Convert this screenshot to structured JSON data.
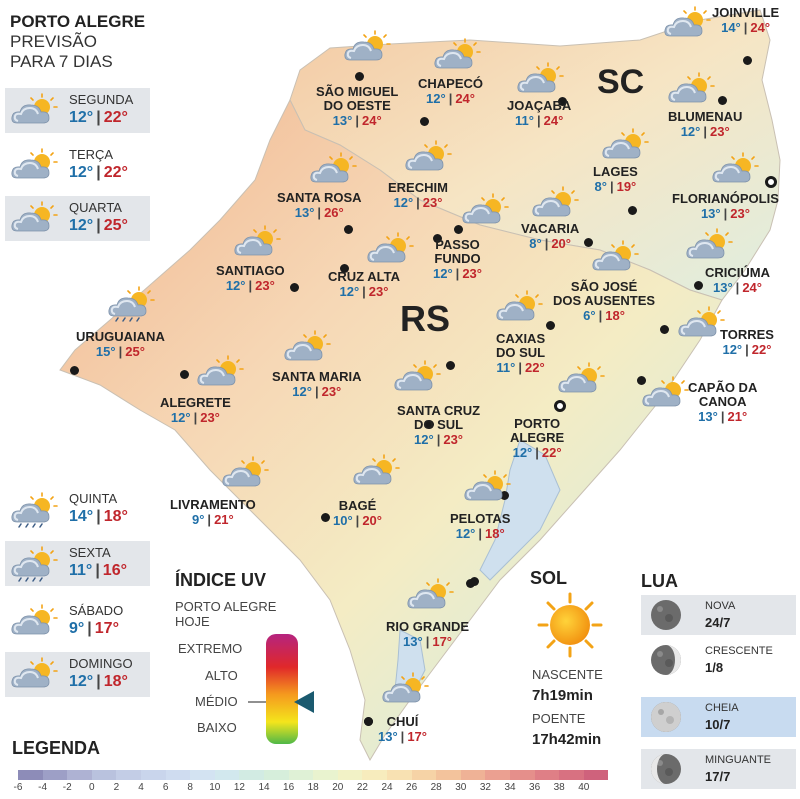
{
  "header": {
    "line1": "PORTO ALEGRE",
    "line2": "PREVISÃO",
    "line3": "PARA 7 DIAS"
  },
  "days": [
    {
      "label": "SEGUNDA",
      "min": "12°",
      "max": "22°",
      "icon": "partly-cloudy-icon"
    },
    {
      "label": "TERÇA",
      "min": "12°",
      "max": "22°",
      "icon": "partly-cloudy-icon"
    },
    {
      "label": "QUARTA",
      "min": "12°",
      "max": "25°",
      "icon": "partly-cloudy-icon"
    },
    {
      "label": "QUINTA",
      "min": "14°",
      "max": "18°",
      "icon": "sun-rain-icon"
    },
    {
      "label": "SEXTA",
      "min": "11°",
      "max": "16°",
      "icon": "sun-rain-icon"
    },
    {
      "label": "SÁBADO",
      "min": "9°",
      "max": "17°",
      "icon": "partly-cloudy-icon"
    },
    {
      "label": "DOMINGO",
      "min": "12°",
      "max": "18°",
      "icon": "partly-cloudy-icon"
    }
  ],
  "states": {
    "sc": "SC",
    "rs": "RS"
  },
  "cities": [
    {
      "name": "JOINVILLE",
      "min": "14°",
      "max": "24°"
    },
    {
      "name": "SÃO MIGUEL DO OESTE",
      "line1": "SÃO MIGUEL",
      "line2": "DO OESTE",
      "min": "13°",
      "max": "24°"
    },
    {
      "name": "CHAPECÓ",
      "min": "12°",
      "max": "24°"
    },
    {
      "name": "JOAÇABA",
      "min": "11°",
      "max": "24°"
    },
    {
      "name": "BLUMENAU",
      "min": "12°",
      "max": "23°"
    },
    {
      "name": "LAGES",
      "min": "8°",
      "max": "19°"
    },
    {
      "name": "FLORIANÓPOLIS",
      "min": "13°",
      "max": "23°"
    },
    {
      "name": "SANTA ROSA",
      "min": "13°",
      "max": "26°"
    },
    {
      "name": "ERECHIM",
      "min": "12°",
      "max": "23°"
    },
    {
      "name": "VACARIA",
      "min": "8°",
      "max": "20°"
    },
    {
      "name": "PASSO FUNDO",
      "line1": "PASSO",
      "line2": "FUNDO",
      "min": "12°",
      "max": "23°"
    },
    {
      "name": "SANTIAGO",
      "min": "12°",
      "max": "23°"
    },
    {
      "name": "CRUZ ALTA",
      "min": "12°",
      "max": "23°"
    },
    {
      "name": "CRICIÚMA",
      "min": "13°",
      "max": "24°"
    },
    {
      "name": "SÃO JOSÉ DOS AUSENTES",
      "line1": "SÃO JOSÉ",
      "line2": "DOS AUSENTES",
      "min": "6°",
      "max": "18°"
    },
    {
      "name": "URUGUAIANA",
      "min": "15°",
      "max": "25°"
    },
    {
      "name": "TORRES",
      "min": "12°",
      "max": "22°"
    },
    {
      "name": "CAXIAS DO SUL",
      "line1": "CAXIAS",
      "line2": "DO SUL",
      "min": "11°",
      "max": "22°"
    },
    {
      "name": "SANTA MARIA",
      "min": "12°",
      "max": "23°"
    },
    {
      "name": "ALEGRETE",
      "min": "12°",
      "max": "23°"
    },
    {
      "name": "SANTA CRUZ DO SUL",
      "line1": "SANTA CRUZ",
      "line2": "DO SUL",
      "min": "12°",
      "max": "23°"
    },
    {
      "name": "PORTO ALEGRE",
      "line1": "PORTO",
      "line2": "ALEGRE",
      "min": "12°",
      "max": "22°"
    },
    {
      "name": "CAPÃO DA CANOA",
      "line1": "CAPÃO DA",
      "line2": "CANOA",
      "min": "13°",
      "max": "21°"
    },
    {
      "name": "LIVRAMENTO",
      "min": "9°",
      "max": "21°"
    },
    {
      "name": "BAGÉ",
      "min": "10°",
      "max": "20°"
    },
    {
      "name": "PELOTAS",
      "min": "12°",
      "max": "18°"
    },
    {
      "name": "RIO GRANDE",
      "min": "13°",
      "max": "17°"
    },
    {
      "name": "CHUÍ",
      "min": "13°",
      "max": "17°"
    }
  ],
  "uv": {
    "title": "ÍNDICE UV",
    "sub1": "PORTO ALEGRE",
    "sub2": "HOJE",
    "levels": [
      "EXTREMO",
      "ALTO",
      "MÉDIO",
      "BAIXO"
    ],
    "current": "MÉDIO"
  },
  "sun": {
    "title": "SOL",
    "rise_label": "NASCENTE",
    "rise": "7h19min",
    "set_label": "POENTE",
    "set": "17h42min"
  },
  "moon": {
    "title": "LUA",
    "phases": [
      {
        "label": "NOVA",
        "date": "24/7"
      },
      {
        "label": "CRESCENTE",
        "date": "1/8"
      },
      {
        "label": "CHEIA",
        "date": "10/7"
      },
      {
        "label": "MINGUANTE",
        "date": "17/7"
      }
    ]
  },
  "legend": {
    "title": "LEGENDA",
    "values": [
      "-6",
      "-4",
      "-2",
      "0",
      "2",
      "4",
      "6",
      "8",
      "10",
      "12",
      "14",
      "16",
      "18",
      "20",
      "22",
      "24",
      "26",
      "28",
      "30",
      "32",
      "34",
      "36",
      "38",
      "40"
    ],
    "colors": [
      "#8d8cb8",
      "#9d9fc6",
      "#aeb2d3",
      "#b9c2de",
      "#c3cde6",
      "#c9d5ec",
      "#cfdcf0",
      "#d3e3f2",
      "#d2e8ee",
      "#d2ebe3",
      "#d6eedb",
      "#dff1d6",
      "#e9f3cf",
      "#f2f2c6",
      "#f7ecbd",
      "#f8e1b2",
      "#f6d3a6",
      "#f3c39c",
      "#efb296",
      "#eba091",
      "#e58f8b",
      "#df7f86",
      "#d87181",
      "#cf627c"
    ]
  },
  "colors": {
    "min": "#1f6fa8",
    "max": "#c0262c"
  }
}
